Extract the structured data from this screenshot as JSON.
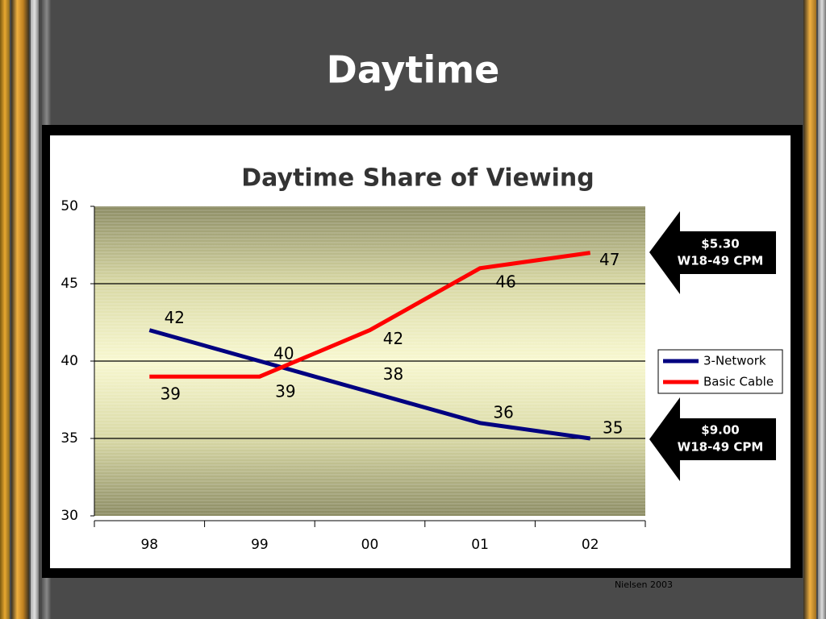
{
  "title": "Daytime",
  "source": "Nielsen 2003",
  "chart_data": {
    "type": "line",
    "title": "Daytime Share of Viewing",
    "categories": [
      "98",
      "99",
      "00",
      "01",
      "02"
    ],
    "series": [
      {
        "name": "3-Network",
        "color": "#000080",
        "values": [
          42,
          40,
          38,
          36,
          35
        ]
      },
      {
        "name": "Basic Cable",
        "color": "#ff0000",
        "values": [
          39,
          39,
          42,
          46,
          47
        ]
      }
    ],
    "ylim": [
      30,
      50
    ],
    "yticks": [
      30,
      35,
      40,
      45,
      50
    ],
    "grid": true,
    "annotations": [
      [
        "$5.30",
        "W18-49 CPM"
      ],
      [
        "$9.00",
        "W18-49 CPM"
      ]
    ]
  }
}
